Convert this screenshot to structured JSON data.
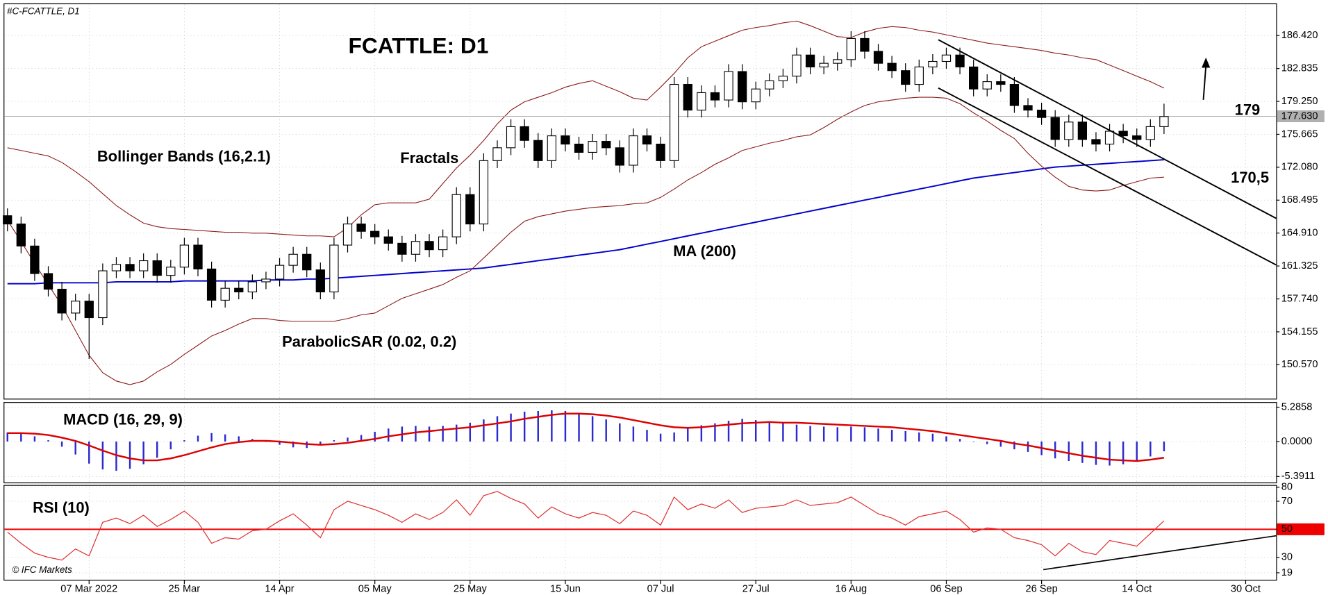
{
  "header": "#C-FCATTLE, D1",
  "footer": "© IFC Markets",
  "chart_data": [
    {
      "type": "candlestick",
      "title": "FCATTLE: D1",
      "grid": true,
      "categories": [
        null,
        null,
        null,
        null,
        null,
        null,
        "07 Mar 2022",
        null,
        null,
        null,
        null,
        null,
        null,
        "25 Mar",
        null,
        null,
        null,
        null,
        null,
        null,
        "14 Apr",
        null,
        null,
        null,
        null,
        null,
        null,
        "05 May",
        null,
        null,
        null,
        null,
        null,
        null,
        "25 May",
        null,
        null,
        null,
        null,
        null,
        null,
        "15 Jun",
        null,
        null,
        null,
        null,
        null,
        null,
        "07 Jul",
        null,
        null,
        null,
        null,
        null,
        null,
        "27 Jul",
        null,
        null,
        null,
        null,
        null,
        null,
        "16 Aug",
        null,
        null,
        null,
        null,
        null,
        null,
        "06 Sep",
        null,
        null,
        null,
        null,
        null,
        null,
        "26 Sep",
        null,
        null,
        null,
        null,
        null,
        null,
        "14 Oct",
        null,
        null,
        null,
        null,
        null,
        null,
        null,
        "30 Oct"
      ],
      "open": [
        166.8,
        165.9,
        163.5,
        160.5,
        158.8,
        156.2,
        157.5,
        155.7,
        160.8,
        161.5,
        160.8,
        161.9,
        160.3,
        161.2,
        163.6,
        161.0,
        157.6,
        158.9,
        158.5,
        159.6,
        159.9,
        161.4,
        162.6,
        160.9,
        158.5,
        163.6,
        165.9,
        165.1,
        164.5,
        163.8,
        162.6,
        164.0,
        163.1,
        164.5,
        169.1,
        165.9,
        172.8,
        174.2,
        176.5,
        175.0,
        172.8,
        175.5,
        174.6,
        173.7,
        174.9,
        174.2,
        172.3,
        175.5,
        174.6,
        172.8,
        181.1,
        178.3,
        180.2,
        179.4,
        182.5,
        179.2,
        180.6,
        181.5,
        182.0,
        184.3,
        183.0,
        183.4,
        183.8,
        186.1,
        184.7,
        183.4,
        182.6,
        181.1,
        183.0,
        183.6,
        184.3,
        183.0,
        180.6,
        181.4,
        181.1,
        178.8,
        178.3,
        177.5,
        175.1,
        177.0,
        175.1,
        174.6,
        176.0,
        175.5,
        175.1,
        176.5,
        null,
        null,
        null,
        null,
        null,
        null
      ],
      "high": [
        167.6,
        166.7,
        164.3,
        161.3,
        159.6,
        158.3,
        158.3,
        161.6,
        162.3,
        162.3,
        162.7,
        162.7,
        162.0,
        164.4,
        164.4,
        161.8,
        159.7,
        159.7,
        160.4,
        160.7,
        162.2,
        163.4,
        163.4,
        161.7,
        164.4,
        166.7,
        166.7,
        165.9,
        165.3,
        164.6,
        164.8,
        164.8,
        165.3,
        169.9,
        169.9,
        173.6,
        175.0,
        177.3,
        177.3,
        175.8,
        176.3,
        176.3,
        175.4,
        175.7,
        175.7,
        175.0,
        176.3,
        176.3,
        175.4,
        181.9,
        181.9,
        181.0,
        181.0,
        183.3,
        183.3,
        181.4,
        182.3,
        182.8,
        185.1,
        185.1,
        184.2,
        184.6,
        186.9,
        186.9,
        185.5,
        184.2,
        183.4,
        183.8,
        184.4,
        185.1,
        185.1,
        183.8,
        182.2,
        182.2,
        181.9,
        179.6,
        179.1,
        178.3,
        177.8,
        177.8,
        175.9,
        176.8,
        176.8,
        176.3,
        177.3,
        179.0,
        null,
        null,
        null,
        null,
        null,
        null
      ],
      "low": [
        165.1,
        162.7,
        159.7,
        158.0,
        155.4,
        155.4,
        151.2,
        154.9,
        160.0,
        160.0,
        160.0,
        159.5,
        159.5,
        160.4,
        160.2,
        156.8,
        156.8,
        157.7,
        157.7,
        158.8,
        159.1,
        160.6,
        160.1,
        157.7,
        157.7,
        162.8,
        164.3,
        163.7,
        163.0,
        161.8,
        161.8,
        162.3,
        162.3,
        163.7,
        165.1,
        165.1,
        172.0,
        173.4,
        174.2,
        172.0,
        172.0,
        173.8,
        172.9,
        172.9,
        173.4,
        171.5,
        171.5,
        173.8,
        172.0,
        172.0,
        177.5,
        177.5,
        178.6,
        178.6,
        178.4,
        178.4,
        179.8,
        180.7,
        181.2,
        182.2,
        182.2,
        182.6,
        183.0,
        183.9,
        182.6,
        181.8,
        180.3,
        180.3,
        182.2,
        182.8,
        182.2,
        179.8,
        179.8,
        180.3,
        178.0,
        177.5,
        176.7,
        174.3,
        174.3,
        174.3,
        173.8,
        173.8,
        174.7,
        174.3,
        174.3,
        175.7,
        null,
        null,
        null,
        null,
        null,
        null
      ],
      "close": [
        165.9,
        163.5,
        160.5,
        158.8,
        156.2,
        157.5,
        155.7,
        160.8,
        161.5,
        160.8,
        161.9,
        160.3,
        161.2,
        163.6,
        161.0,
        157.6,
        158.9,
        158.5,
        159.6,
        159.9,
        161.4,
        162.6,
        160.9,
        158.5,
        163.6,
        165.9,
        165.1,
        164.5,
        163.8,
        162.6,
        164.0,
        163.1,
        164.5,
        169.1,
        165.9,
        172.8,
        174.2,
        176.5,
        175.0,
        172.8,
        175.5,
        174.6,
        173.7,
        174.9,
        174.2,
        172.3,
        175.5,
        174.6,
        172.8,
        181.1,
        178.3,
        180.2,
        179.4,
        182.5,
        179.2,
        180.6,
        181.5,
        182.0,
        184.3,
        183.0,
        183.4,
        183.8,
        186.1,
        184.7,
        183.4,
        182.6,
        181.1,
        183.0,
        183.6,
        184.3,
        183.0,
        180.6,
        181.4,
        181.1,
        178.8,
        178.3,
        177.5,
        175.1,
        177.0,
        175.1,
        174.6,
        176.0,
        175.5,
        175.1,
        176.5,
        177.6,
        null,
        null,
        null,
        null,
        null,
        null
      ],
      "series": [
        {
          "name": "MA (200)",
          "color": "#0000cc",
          "values": [
            159.4,
            159.4,
            159.4,
            159.5,
            159.5,
            159.5,
            159.5,
            159.5,
            159.6,
            159.6,
            159.6,
            159.6,
            159.6,
            159.7,
            159.7,
            159.7,
            159.7,
            159.7,
            159.7,
            159.8,
            159.8,
            159.8,
            159.9,
            159.9,
            160.0,
            160.1,
            160.2,
            160.3,
            160.4,
            160.5,
            160.6,
            160.7,
            160.8,
            160.9,
            161.0,
            161.1,
            161.3,
            161.5,
            161.7,
            161.9,
            162.1,
            162.3,
            162.5,
            162.7,
            162.9,
            163.1,
            163.4,
            163.7,
            164.0,
            164.3,
            164.6,
            164.9,
            165.2,
            165.5,
            165.8,
            166.1,
            166.4,
            166.7,
            167.0,
            167.3,
            167.6,
            167.9,
            168.2,
            168.5,
            168.8,
            169.1,
            169.4,
            169.7,
            170.0,
            170.3,
            170.6,
            170.9,
            171.1,
            171.3,
            171.5,
            171.7,
            171.9,
            172.1,
            172.2,
            172.3,
            172.4,
            172.5,
            172.6,
            172.7,
            172.8,
            172.9,
            null,
            null,
            null,
            null,
            null,
            null
          ]
        },
        {
          "name": "Bollinger Bands (16,2.1)",
          "color": "#8b1a1a",
          "upper": [
            174.2,
            173.9,
            173.6,
            173.3,
            172.6,
            171.6,
            170.5,
            169.2,
            167.9,
            166.9,
            166.0,
            165.6,
            165.4,
            165.3,
            165.2,
            165.1,
            165.0,
            165.0,
            164.9,
            164.9,
            164.8,
            164.7,
            164.6,
            164.6,
            164.5,
            165.5,
            166.9,
            168.0,
            168.2,
            168.2,
            168.2,
            168.6,
            170.3,
            172.0,
            173.4,
            175.0,
            176.8,
            178.3,
            179.2,
            179.7,
            180.2,
            180.8,
            181.2,
            181.5,
            180.9,
            180.3,
            179.6,
            179.4,
            180.8,
            182.3,
            184.0,
            185.2,
            185.8,
            186.4,
            187.0,
            187.3,
            187.5,
            187.8,
            188.0,
            187.5,
            186.9,
            186.3,
            186.2,
            186.8,
            187.2,
            187.4,
            187.3,
            187.0,
            186.8,
            186.5,
            186.2,
            185.9,
            185.6,
            185.4,
            185.2,
            185.0,
            184.8,
            184.5,
            184.3,
            184.0,
            183.8,
            183.2,
            182.6,
            182.0,
            181.4,
            180.7,
            null,
            null,
            null,
            null,
            null,
            null
          ],
          "lower": [
            166.3,
            164.0,
            161.6,
            159.3,
            157.0,
            154.3,
            151.6,
            149.7,
            148.8,
            148.4,
            148.8,
            149.8,
            150.6,
            151.7,
            152.7,
            153.7,
            154.3,
            155.0,
            155.6,
            155.6,
            155.4,
            155.3,
            155.3,
            155.3,
            155.3,
            155.6,
            156.0,
            156.2,
            157.0,
            157.8,
            158.3,
            158.8,
            159.3,
            160.1,
            160.8,
            162.2,
            163.6,
            165.0,
            166.2,
            166.7,
            167.0,
            167.3,
            167.5,
            167.7,
            167.8,
            167.9,
            168.1,
            168.2,
            168.8,
            169.7,
            170.7,
            171.5,
            172.4,
            173.1,
            173.9,
            174.3,
            174.7,
            175.0,
            175.4,
            175.6,
            176.4,
            177.3,
            178.1,
            178.8,
            179.2,
            179.4,
            179.6,
            179.7,
            179.7,
            179.6,
            179.0,
            178.0,
            177.1,
            176.1,
            175.2,
            173.6,
            172.2,
            171.0,
            170.0,
            169.6,
            169.5,
            169.6,
            170.1,
            170.5,
            170.9,
            171.0,
            null,
            null,
            null,
            null,
            null,
            null
          ]
        }
      ],
      "annotations": [
        "Fractals",
        "ParabolicSAR (0.02, 0.2)",
        "179",
        "170,5"
      ],
      "last_price": {
        "value": 177.63,
        "label": "177.630"
      },
      "ylim": [
        146.88,
        189.83
      ],
      "yticks": [
        {
          "value": 186.42,
          "label": "186.420"
        },
        182.835,
        {
          "value": 179.25,
          "label": "179.250"
        },
        175.665,
        {
          "value": 172.08,
          "label": "172.080"
        },
        168.495,
        {
          "value": 164.91,
          "label": "164.910"
        },
        161.325,
        {
          "value": 157.74,
          "label": "157.740"
        },
        154.155,
        {
          "value": 150.57,
          "label": "150.570"
        }
      ]
    },
    {
      "type": "macd",
      "grid": true,
      "series": [
        {
          "name": "MACD (16, 29, 9)",
          "color": "#2a2ad0",
          "signal_color": "#dd0000",
          "values": [
            1.4,
            1.2,
            0.8,
            0.2,
            -0.8,
            -2.0,
            -3.4,
            -4.3,
            -4.5,
            -4.2,
            -3.5,
            -2.5,
            -1.2,
            0.2,
            0.9,
            1.3,
            1.1,
            0.8,
            0.4,
            0.0,
            -0.5,
            -0.9,
            -1.0,
            -0.6,
            0.2,
            0.6,
            1.0,
            1.5,
            2.0,
            2.3,
            2.4,
            2.3,
            2.4,
            2.6,
            2.9,
            3.4,
            3.9,
            4.3,
            4.6,
            4.7,
            4.8,
            4.7,
            4.3,
            3.9,
            3.4,
            2.8,
            2.3,
            1.8,
            1.2,
            1.4,
            2.0,
            2.5,
            2.8,
            3.2,
            3.5,
            3.3,
            3.0,
            2.8,
            2.6,
            2.4,
            2.3,
            2.2,
            2.3,
            2.2,
            2.0,
            1.8,
            1.6,
            1.4,
            1.2,
            0.8,
            0.4,
            0.0,
            -0.4,
            -0.8,
            -1.2,
            -1.6,
            -2.1,
            -2.6,
            -3.0,
            -3.3,
            -3.6,
            -3.7,
            -3.5,
            -3.0,
            -2.3,
            -1.5,
            null,
            null,
            null,
            null,
            null,
            null
          ],
          "signal": [
            1.3,
            1.3,
            1.2,
            1.0,
            0.6,
            0.1,
            -0.6,
            -1.4,
            -2.1,
            -2.6,
            -2.9,
            -2.9,
            -2.6,
            -2.1,
            -1.5,
            -0.9,
            -0.4,
            -0.1,
            0.1,
            0.1,
            0.0,
            -0.2,
            -0.4,
            -0.5,
            -0.4,
            -0.2,
            0.1,
            0.4,
            0.8,
            1.1,
            1.4,
            1.6,
            1.8,
            2.0,
            2.2,
            2.5,
            2.8,
            3.1,
            3.5,
            3.8,
            4.1,
            4.3,
            4.3,
            4.2,
            4.0,
            3.7,
            3.3,
            2.9,
            2.5,
            2.2,
            2.1,
            2.2,
            2.4,
            2.6,
            2.8,
            2.9,
            3.0,
            2.9,
            2.9,
            2.8,
            2.7,
            2.6,
            2.5,
            2.4,
            2.3,
            2.2,
            2.0,
            1.8,
            1.6,
            1.3,
            1.0,
            0.7,
            0.4,
            0.1,
            -0.3,
            -0.6,
            -1.0,
            -1.4,
            -1.8,
            -2.2,
            -2.5,
            -2.8,
            -2.9,
            -3.0,
            -2.8,
            -2.5,
            null,
            null,
            null,
            null,
            null,
            null
          ]
        }
      ],
      "ylim": [
        -6.3,
        5.95
      ],
      "yticks": [
        5.2858,
        {
          "value": 0,
          "label": "0.0000"
        },
        -5.3911
      ]
    },
    {
      "type": "line",
      "grid": true,
      "level": 50,
      "level_color": "#ee0000",
      "series": [
        {
          "name": "RSI (10)",
          "color": "#e03030",
          "values": [
            48,
            40,
            33,
            30,
            28,
            36,
            31,
            55,
            58,
            54,
            60,
            52,
            57,
            63,
            55,
            40,
            44,
            43,
            49,
            50,
            56,
            61,
            53,
            44,
            64,
            70,
            67,
            64,
            60,
            55,
            61,
            57,
            62,
            71,
            60,
            74,
            77,
            72,
            68,
            58,
            66,
            61,
            58,
            62,
            60,
            54,
            63,
            60,
            53,
            73,
            64,
            68,
            65,
            71,
            62,
            65,
            66,
            67,
            71,
            67,
            68,
            69,
            73,
            67,
            61,
            58,
            53,
            59,
            61,
            63,
            57,
            48,
            51,
            50,
            44,
            42,
            39,
            31,
            40,
            34,
            32,
            42,
            40,
            38,
            47,
            56,
            null,
            null,
            null,
            null,
            null,
            null
          ]
        }
      ],
      "ylim": [
        14,
        81
      ],
      "yticks": [
        80,
        70,
        50,
        30,
        19
      ]
    }
  ]
}
